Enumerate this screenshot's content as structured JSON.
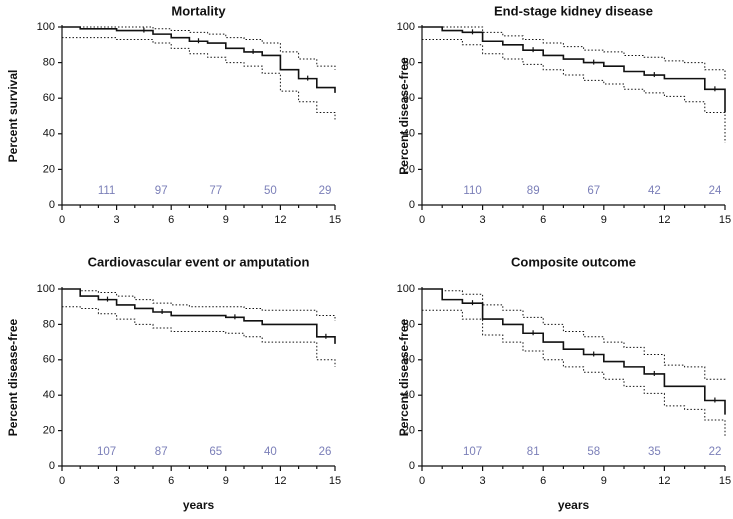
{
  "chart_data": [
    {
      "type": "line",
      "title": "Mortality",
      "ylabel": "Percent survival",
      "xlabel": "",
      "xlim": [
        0,
        15
      ],
      "ylim": [
        0,
        100
      ],
      "xticks": [
        "0",
        "3",
        "6",
        "9",
        "12",
        "15"
      ],
      "yticks": [
        "0",
        "20",
        "40",
        "60",
        "80",
        "100"
      ],
      "number_at_risk": [
        {
          "x": 3,
          "label": "111"
        },
        {
          "x": 6,
          "label": "97"
        },
        {
          "x": 9,
          "label": "77"
        },
        {
          "x": 12,
          "label": "50"
        },
        {
          "x": 15,
          "label": "29"
        }
      ],
      "survival": {
        "x": [
          0,
          1,
          3,
          5,
          6,
          7,
          8,
          9,
          10,
          11,
          12,
          13,
          14,
          15
        ],
        "y": [
          100,
          99,
          98,
          96,
          94,
          92,
          91,
          88,
          86,
          84,
          76,
          71,
          66,
          63
        ]
      },
      "ci_upper": {
        "x": [
          0,
          1,
          3,
          5,
          6,
          7,
          8,
          9,
          10,
          11,
          12,
          13,
          14,
          15
        ],
        "y": [
          100,
          100,
          100,
          99,
          98,
          97,
          96,
          94,
          93,
          91,
          86,
          82,
          78,
          76
        ]
      },
      "ci_lower": {
        "x": [
          0,
          1,
          3,
          5,
          6,
          7,
          8,
          9,
          10,
          11,
          12,
          13,
          14,
          15
        ],
        "y": [
          94,
          94,
          93,
          91,
          88,
          85,
          83,
          80,
          78,
          74,
          64,
          58,
          52,
          48
        ]
      }
    },
    {
      "type": "line",
      "title": "End-stage kidney disease",
      "ylabel": "Percent disease-free",
      "xlabel": "",
      "xlim": [
        0,
        15
      ],
      "ylim": [
        0,
        100
      ],
      "xticks": [
        "0",
        "3",
        "6",
        "9",
        "12",
        "15"
      ],
      "yticks": [
        "0",
        "20",
        "40",
        "60",
        "80",
        "100"
      ],
      "number_at_risk": [
        {
          "x": 3,
          "label": "110"
        },
        {
          "x": 6,
          "label": "89"
        },
        {
          "x": 9,
          "label": "67"
        },
        {
          "x": 12,
          "label": "42"
        },
        {
          "x": 15,
          "label": "24"
        }
      ],
      "survival": {
        "x": [
          0,
          1,
          2,
          3,
          4,
          5,
          6,
          7,
          8,
          9,
          10,
          11,
          12,
          13,
          14,
          15
        ],
        "y": [
          100,
          98,
          97,
          92,
          90,
          87,
          84,
          82,
          80,
          78,
          75,
          73,
          71,
          71,
          65,
          52
        ]
      },
      "ci_upper": {
        "x": [
          0,
          1,
          2,
          3,
          4,
          5,
          6,
          7,
          8,
          9,
          10,
          11,
          12,
          13,
          14,
          15
        ],
        "y": [
          100,
          100,
          100,
          97,
          95,
          93,
          91,
          89,
          87,
          86,
          84,
          83,
          81,
          80,
          76,
          70
        ]
      },
      "ci_lower": {
        "x": [
          0,
          1,
          2,
          3,
          4,
          5,
          6,
          7,
          8,
          9,
          10,
          11,
          12,
          13,
          14,
          15
        ],
        "y": [
          93,
          93,
          90,
          85,
          82,
          79,
          76,
          73,
          70,
          68,
          65,
          63,
          61,
          58,
          52,
          35
        ]
      }
    },
    {
      "type": "line",
      "title": "Cardiovascular event or amputation",
      "ylabel": "Percent disease-free",
      "xlabel": "years",
      "xlim": [
        0,
        15
      ],
      "ylim": [
        0,
        100
      ],
      "xticks": [
        "0",
        "3",
        "6",
        "9",
        "12",
        "15"
      ],
      "yticks": [
        "0",
        "20",
        "40",
        "60",
        "80",
        "100"
      ],
      "number_at_risk": [
        {
          "x": 3,
          "label": "107"
        },
        {
          "x": 6,
          "label": "87"
        },
        {
          "x": 9,
          "label": "65"
        },
        {
          "x": 12,
          "label": "40"
        },
        {
          "x": 15,
          "label": "26"
        }
      ],
      "survival": {
        "x": [
          0,
          1,
          2,
          3,
          4,
          5,
          6,
          7,
          9,
          10,
          11,
          14,
          15
        ],
        "y": [
          100,
          96,
          94,
          91,
          89,
          87,
          85,
          85,
          84,
          82,
          80,
          73,
          69
        ]
      },
      "ci_upper": {
        "x": [
          0,
          1,
          2,
          3,
          4,
          5,
          6,
          7,
          9,
          10,
          11,
          14,
          15
        ],
        "y": [
          100,
          99,
          98,
          96,
          94,
          92,
          91,
          90,
          90,
          89,
          88,
          85,
          82
        ]
      },
      "ci_lower": {
        "x": [
          0,
          1,
          2,
          3,
          4,
          5,
          6,
          7,
          9,
          10,
          11,
          14,
          15
        ],
        "y": [
          90,
          89,
          86,
          83,
          80,
          78,
          76,
          76,
          75,
          73,
          70,
          60,
          56
        ]
      }
    },
    {
      "type": "line",
      "title": "Composite outcome",
      "ylabel": "Percent disease-free",
      "xlabel": "years",
      "xlim": [
        0,
        15
      ],
      "ylim": [
        0,
        100
      ],
      "xticks": [
        "0",
        "3",
        "6",
        "9",
        "12",
        "15"
      ],
      "yticks": [
        "0",
        "20",
        "40",
        "60",
        "80",
        "100"
      ],
      "number_at_risk": [
        {
          "x": 3,
          "label": "107"
        },
        {
          "x": 6,
          "label": "81"
        },
        {
          "x": 9,
          "label": "58"
        },
        {
          "x": 12,
          "label": "35"
        },
        {
          "x": 15,
          "label": "22"
        }
      ],
      "survival": {
        "x": [
          0,
          1,
          2,
          3,
          4,
          5,
          6,
          7,
          8,
          9,
          10,
          11,
          12,
          13,
          14,
          15
        ],
        "y": [
          100,
          94,
          92,
          83,
          80,
          75,
          70,
          66,
          63,
          59,
          56,
          52,
          45,
          45,
          37,
          29
        ]
      },
      "ci_upper": {
        "x": [
          0,
          1,
          2,
          3,
          4,
          5,
          6,
          7,
          8,
          9,
          10,
          11,
          12,
          13,
          14,
          15
        ],
        "y": [
          100,
          99,
          97,
          91,
          88,
          84,
          80,
          76,
          73,
          70,
          67,
          63,
          57,
          56,
          49,
          48
        ]
      },
      "ci_lower": {
        "x": [
          0,
          1,
          2,
          3,
          4,
          5,
          6,
          7,
          8,
          9,
          10,
          11,
          12,
          13,
          14,
          15
        ],
        "y": [
          88,
          88,
          83,
          74,
          70,
          65,
          60,
          56,
          53,
          49,
          45,
          41,
          34,
          32,
          26,
          17
        ]
      }
    }
  ]
}
